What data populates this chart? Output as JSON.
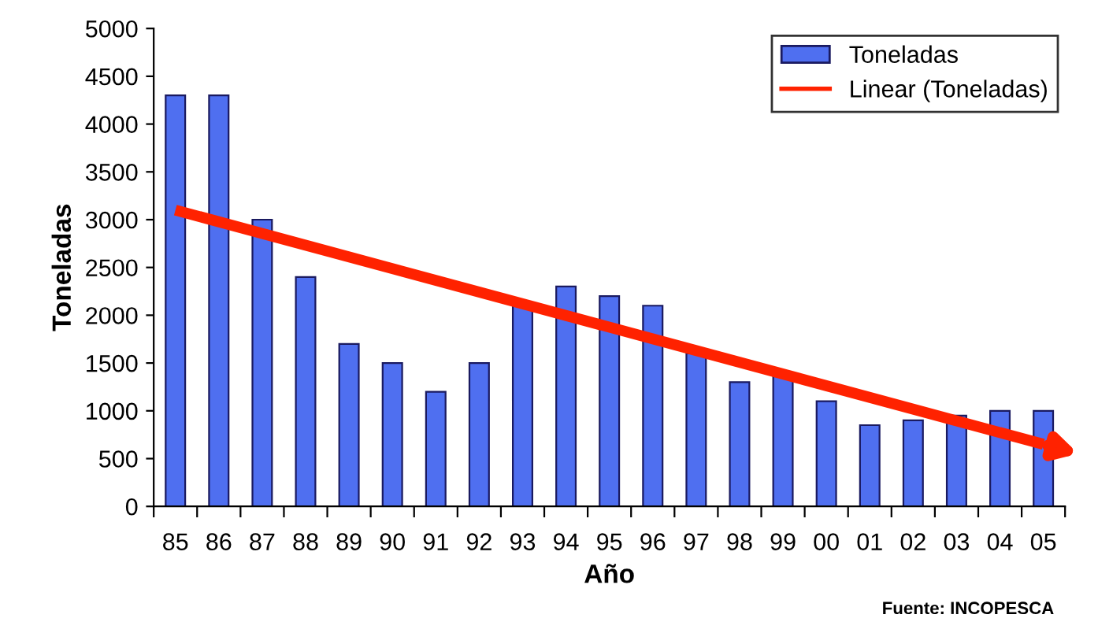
{
  "chart_data": {
    "type": "bar",
    "xlabel": "Año",
    "ylabel": "Toneladas",
    "categories": [
      "85",
      "86",
      "87",
      "88",
      "89",
      "90",
      "91",
      "92",
      "93",
      "94",
      "95",
      "96",
      "97",
      "98",
      "99",
      "00",
      "01",
      "02",
      "03",
      "04",
      "05"
    ],
    "series": [
      {
        "name": "Toneladas",
        "color": "#4f6ff0",
        "values": [
          4300,
          4300,
          3000,
          2400,
          1700,
          1500,
          1200,
          1500,
          2100,
          2300,
          2200,
          2100,
          1600,
          1300,
          1400,
          1100,
          850,
          900,
          950,
          1000,
          1000
        ]
      },
      {
        "name": "Linear (Toneladas)",
        "type": "line",
        "color": "#ff2200",
        "x": [
          "85",
          "05"
        ],
        "values": [
          3100,
          650
        ]
      }
    ],
    "ylim": [
      0,
      5000
    ],
    "yticks": [
      0,
      500,
      1000,
      1500,
      2000,
      2500,
      3000,
      3500,
      4000,
      4500,
      5000
    ],
    "grid": false,
    "legend": "top right",
    "annotations": [
      "Fuente: INCOPESCA"
    ]
  }
}
